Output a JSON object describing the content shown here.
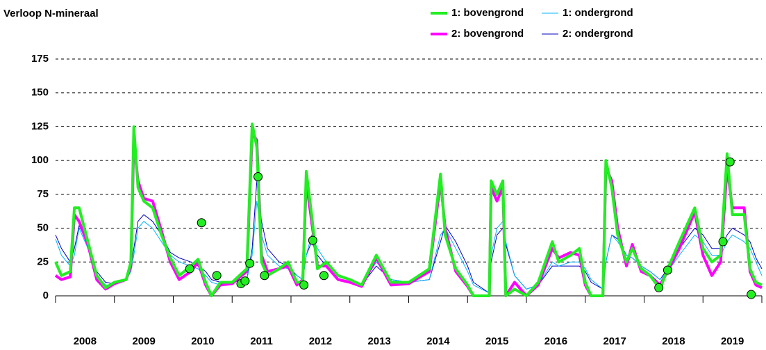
{
  "chart_data": {
    "type": "line",
    "title": "Verloop N-mineraal",
    "x": [
      2008.0,
      2008.1,
      2008.25,
      2008.32,
      2008.4,
      2008.55,
      2008.7,
      2008.85,
      2009.0,
      2009.2,
      2009.28,
      2009.33,
      2009.4,
      2009.5,
      2009.65,
      2009.8,
      2009.95,
      2010.1,
      2010.3,
      2010.42,
      2010.55,
      2010.65,
      2010.8,
      2011.0,
      2011.25,
      2011.34,
      2011.42,
      2011.5,
      2011.6,
      2011.8,
      2011.95,
      2012.1,
      2012.2,
      2012.26,
      2012.35,
      2012.45,
      2012.6,
      2012.8,
      2013.0,
      2013.2,
      2013.45,
      2013.7,
      2014.0,
      2014.35,
      2014.54,
      2014.62,
      2014.8,
      2015.0,
      2015.1,
      2015.37,
      2015.4,
      2015.5,
      2015.6,
      2015.65,
      2015.8,
      2016.0,
      2016.2,
      2016.44,
      2016.55,
      2016.75,
      2016.9,
      2017.0,
      2017.1,
      2017.3,
      2017.35,
      2017.45,
      2017.55,
      2017.7,
      2017.8,
      2017.95,
      2018.1,
      2018.27,
      2018.4,
      2018.6,
      2018.86,
      2019.0,
      2019.15,
      2019.3,
      2019.41,
      2019.5,
      2019.7,
      2019.8,
      2019.9,
      2020.0
    ],
    "series": [
      {
        "name": "2: ondergrond",
        "color": "#0000c0",
        "width": 1,
        "values": [
          45,
          35,
          25,
          35,
          52,
          38,
          18,
          10,
          9,
          13,
          20,
          35,
          55,
          60,
          55,
          45,
          32,
          28,
          25,
          22,
          18,
          12,
          10,
          10,
          12,
          35,
          85,
          55,
          35,
          25,
          22,
          15,
          12,
          30,
          40,
          30,
          22,
          15,
          12,
          8,
          22,
          12,
          10,
          12,
          40,
          52,
          40,
          22,
          10,
          2,
          25,
          45,
          50,
          38,
          15,
          5,
          8,
          22,
          22,
          22,
          22,
          18,
          10,
          5,
          25,
          45,
          42,
          30,
          28,
          22,
          18,
          12,
          20,
          35,
          50,
          45,
          35,
          35,
          45,
          50,
          45,
          40,
          28,
          20
        ]
      },
      {
        "name": "1: ondergrond",
        "color": "#00b4ff",
        "width": 1,
        "values": [
          42,
          30,
          22,
          30,
          50,
          35,
          15,
          8,
          8,
          12,
          18,
          30,
          50,
          55,
          50,
          40,
          30,
          25,
          22,
          20,
          15,
          10,
          8,
          10,
          12,
          30,
          70,
          45,
          30,
          22,
          20,
          15,
          12,
          30,
          45,
          35,
          25,
          15,
          12,
          8,
          25,
          12,
          10,
          12,
          45,
          50,
          35,
          18,
          8,
          2,
          30,
          50,
          55,
          40,
          15,
          5,
          8,
          25,
          22,
          25,
          25,
          20,
          12,
          5,
          25,
          45,
          40,
          30,
          28,
          22,
          18,
          12,
          18,
          30,
          45,
          40,
          30,
          30,
          40,
          45,
          40,
          35,
          25,
          15
        ]
      },
      {
        "name": "2: bovengrond",
        "color": "#ff00ff",
        "width": 4,
        "values": [
          15,
          12,
          14,
          60,
          55,
          38,
          12,
          5,
          9,
          12,
          22,
          115,
          85,
          72,
          70,
          48,
          25,
          12,
          18,
          25,
          8,
          0,
          8,
          9,
          18,
          120,
          115,
          30,
          18,
          20,
          22,
          8,
          12,
          85,
          55,
          22,
          22,
          12,
          10,
          7,
          28,
          8,
          9,
          18,
          85,
          50,
          18,
          7,
          0,
          0,
          80,
          70,
          80,
          0,
          10,
          0,
          8,
          35,
          28,
          32,
          30,
          8,
          0,
          0,
          95,
          85,
          50,
          22,
          38,
          18,
          15,
          8,
          18,
          35,
          62,
          30,
          15,
          25,
          95,
          65,
          65,
          18,
          8,
          6
        ]
      },
      {
        "name": "1: bovengrond",
        "color": "#22ee22",
        "width": 4,
        "values": [
          25,
          15,
          18,
          65,
          65,
          40,
          15,
          6,
          10,
          12,
          25,
          125,
          80,
          70,
          65,
          45,
          28,
          15,
          22,
          27,
          10,
          0,
          10,
          10,
          20,
          127,
          110,
          25,
          15,
          20,
          25,
          10,
          10,
          92,
          60,
          20,
          25,
          15,
          12,
          8,
          30,
          10,
          10,
          20,
          90,
          45,
          20,
          8,
          0,
          0,
          85,
          75,
          85,
          0,
          5,
          0,
          10,
          40,
          25,
          30,
          35,
          10,
          0,
          0,
          100,
          80,
          45,
          25,
          35,
          20,
          15,
          5,
          20,
          40,
          65,
          35,
          25,
          30,
          105,
          60,
          60,
          20,
          10,
          8
        ]
      }
    ],
    "points": {
      "color": "#22ee22",
      "x": [
        2010.28,
        2010.48,
        2010.74,
        2011.15,
        2011.22,
        2011.3,
        2011.44,
        2011.55,
        2012.22,
        2012.37,
        2012.56,
        2018.25,
        2018.4,
        2019.34,
        2019.46,
        2019.82
      ],
      "values": [
        20,
        54,
        15,
        9,
        11,
        24,
        88,
        15,
        8,
        41,
        15,
        6,
        19,
        40,
        99,
        1
      ]
    },
    "xlim": [
      2008,
      2020
    ],
    "xticks": [
      2008,
      2009,
      2010,
      2011,
      2012,
      2013,
      2014,
      2015,
      2016,
      2017,
      2018,
      2019,
      2020
    ],
    "ylim": [
      0,
      175
    ],
    "yticks": [
      0,
      25,
      50,
      75,
      100,
      125,
      150,
      175
    ],
    "grid": true
  }
}
